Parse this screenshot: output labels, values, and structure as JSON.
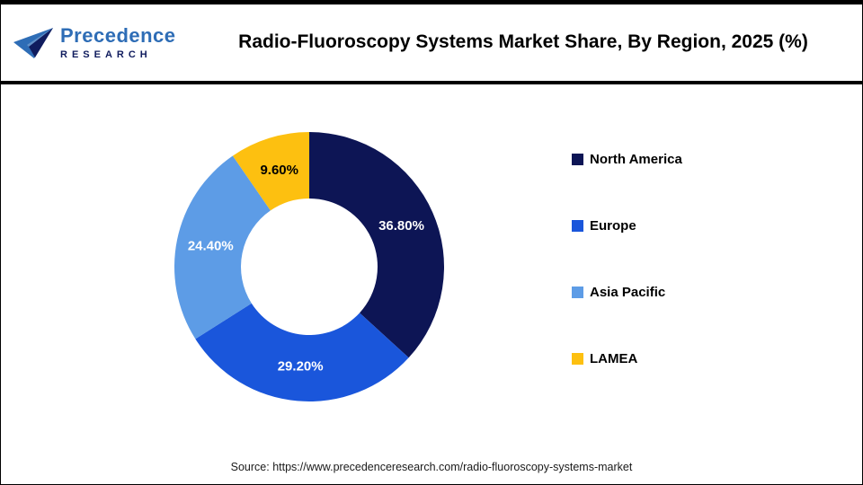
{
  "header": {
    "logo": {
      "line1": "Precedence",
      "line2": "RESEARCH"
    },
    "title": "Radio-Fluoroscopy Systems Market Share, By Region, 2025 (%)"
  },
  "chart_data": {
    "type": "pie",
    "subtype": "donut",
    "title": "Radio-Fluoroscopy Systems Market Share, By Region, 2025 (%)",
    "categories": [
      "North America",
      "Europe",
      "Asia Pacific",
      "LAMEA"
    ],
    "values": [
      36.8,
      29.2,
      24.4,
      9.6
    ],
    "labels": [
      "36.80%",
      "29.20%",
      "24.40%",
      "9.60%"
    ],
    "colors": [
      "#0d1555",
      "#1a56db",
      "#5d9ce6",
      "#fdc010"
    ],
    "label_colors": [
      "#ffffff",
      "#ffffff",
      "#ffffff",
      "#000000"
    ],
    "start_angle_deg": 0,
    "direction": "clockwise",
    "legend_position": "right"
  },
  "footer": {
    "source": "Source: https://www.precedenceresearch.com/radio-fluoroscopy-systems-market"
  }
}
